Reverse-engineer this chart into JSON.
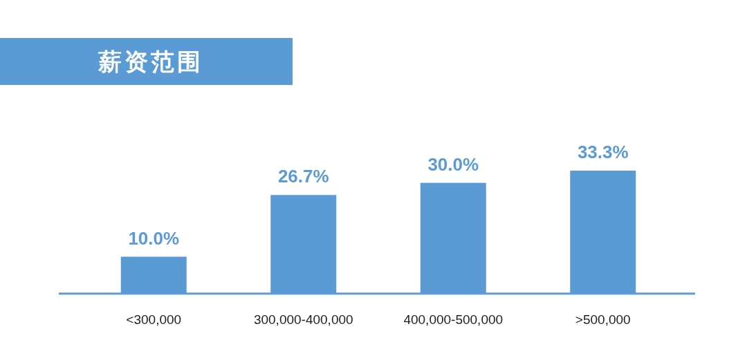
{
  "chart_data": {
    "type": "bar",
    "title": "薪资范围",
    "categories": [
      "<300,000",
      "300,000-400,000",
      "400,000-500,000",
      ">500,000"
    ],
    "values": [
      10.0,
      26.7,
      30.0,
      33.3
    ],
    "value_labels": [
      "10.0%",
      "26.7%",
      "30.0%",
      "33.3%"
    ],
    "color": "#5b9bd5"
  }
}
